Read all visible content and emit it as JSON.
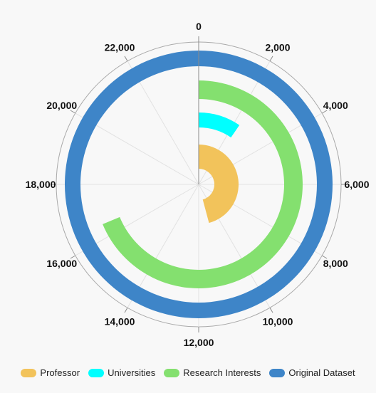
{
  "chart_data": {
    "type": "radial-bar",
    "axis": {
      "min": 0,
      "max": 24000,
      "ticks": [
        0,
        2000,
        4000,
        6000,
        8000,
        10000,
        12000,
        14000,
        16000,
        18000,
        20000,
        22000
      ],
      "tick_labels": [
        "0",
        "2,000",
        "4,000",
        "6,000",
        "8,000",
        "10,000",
        "12,000",
        "14,000",
        "16,000",
        "18,000",
        "20,000",
        "22,000"
      ]
    },
    "series": [
      {
        "name": "Professor",
        "value": 11000,
        "color": "#f2c35b"
      },
      {
        "name": "Universities",
        "value": 2300,
        "color": "#00ffff"
      },
      {
        "name": "Research Interests",
        "value": 16500,
        "color": "#84e06f"
      },
      {
        "name": "Original Dataset",
        "value": 24000,
        "color": "#3e85c8"
      }
    ],
    "legend_position": "bottom"
  }
}
